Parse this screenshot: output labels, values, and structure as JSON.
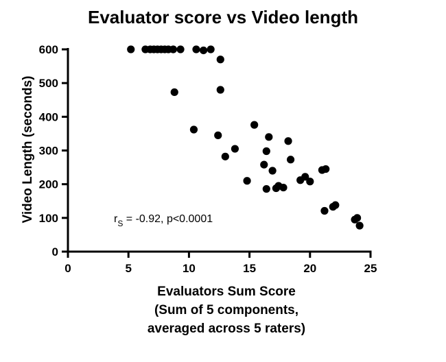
{
  "chart_data": {
    "type": "scatter",
    "title": "Evaluator score vs Video length",
    "xlabel": [
      "Evaluators Sum Score",
      "(Sum of 5 components,",
      "averaged across 5 raters)"
    ],
    "ylabel": "Video Length (seconds)",
    "xlim": [
      0,
      25
    ],
    "ylim": [
      0,
      600
    ],
    "xticks": [
      "0",
      "5",
      "10",
      "15",
      "20",
      "25"
    ],
    "yticks": [
      "0",
      "100",
      "200",
      "300",
      "400",
      "500",
      "600"
    ],
    "grid": false,
    "point_color": "#000000",
    "annotation": {
      "r": "r",
      "sub": "S",
      "text": " = -0.92, p<0.0001"
    },
    "points": [
      {
        "x": 5.2,
        "y": 600
      },
      {
        "x": 6.4,
        "y": 600
      },
      {
        "x": 6.8,
        "y": 600
      },
      {
        "x": 7.1,
        "y": 600
      },
      {
        "x": 7.4,
        "y": 600
      },
      {
        "x": 7.7,
        "y": 600
      },
      {
        "x": 8.0,
        "y": 600
      },
      {
        "x": 8.3,
        "y": 600
      },
      {
        "x": 8.7,
        "y": 600
      },
      {
        "x": 9.3,
        "y": 600
      },
      {
        "x": 10.6,
        "y": 600
      },
      {
        "x": 11.2,
        "y": 597
      },
      {
        "x": 11.8,
        "y": 600
      },
      {
        "x": 12.6,
        "y": 570
      },
      {
        "x": 12.6,
        "y": 480
      },
      {
        "x": 8.8,
        "y": 473
      },
      {
        "x": 10.4,
        "y": 362
      },
      {
        "x": 12.4,
        "y": 345
      },
      {
        "x": 13.0,
        "y": 282
      },
      {
        "x": 13.8,
        "y": 305
      },
      {
        "x": 15.4,
        "y": 376
      },
      {
        "x": 16.6,
        "y": 340
      },
      {
        "x": 18.2,
        "y": 328
      },
      {
        "x": 16.4,
        "y": 298
      },
      {
        "x": 18.4,
        "y": 273
      },
      {
        "x": 16.2,
        "y": 258
      },
      {
        "x": 16.9,
        "y": 240
      },
      {
        "x": 14.8,
        "y": 210
      },
      {
        "x": 16.4,
        "y": 186
      },
      {
        "x": 17.2,
        "y": 188
      },
      {
        "x": 17.4,
        "y": 195
      },
      {
        "x": 17.8,
        "y": 190
      },
      {
        "x": 19.2,
        "y": 212
      },
      {
        "x": 19.6,
        "y": 222
      },
      {
        "x": 20.0,
        "y": 208
      },
      {
        "x": 21.0,
        "y": 242
      },
      {
        "x": 21.3,
        "y": 245
      },
      {
        "x": 21.2,
        "y": 121
      },
      {
        "x": 21.9,
        "y": 133
      },
      {
        "x": 22.1,
        "y": 138
      },
      {
        "x": 23.7,
        "y": 95
      },
      {
        "x": 23.9,
        "y": 100
      },
      {
        "x": 24.1,
        "y": 77
      }
    ]
  }
}
